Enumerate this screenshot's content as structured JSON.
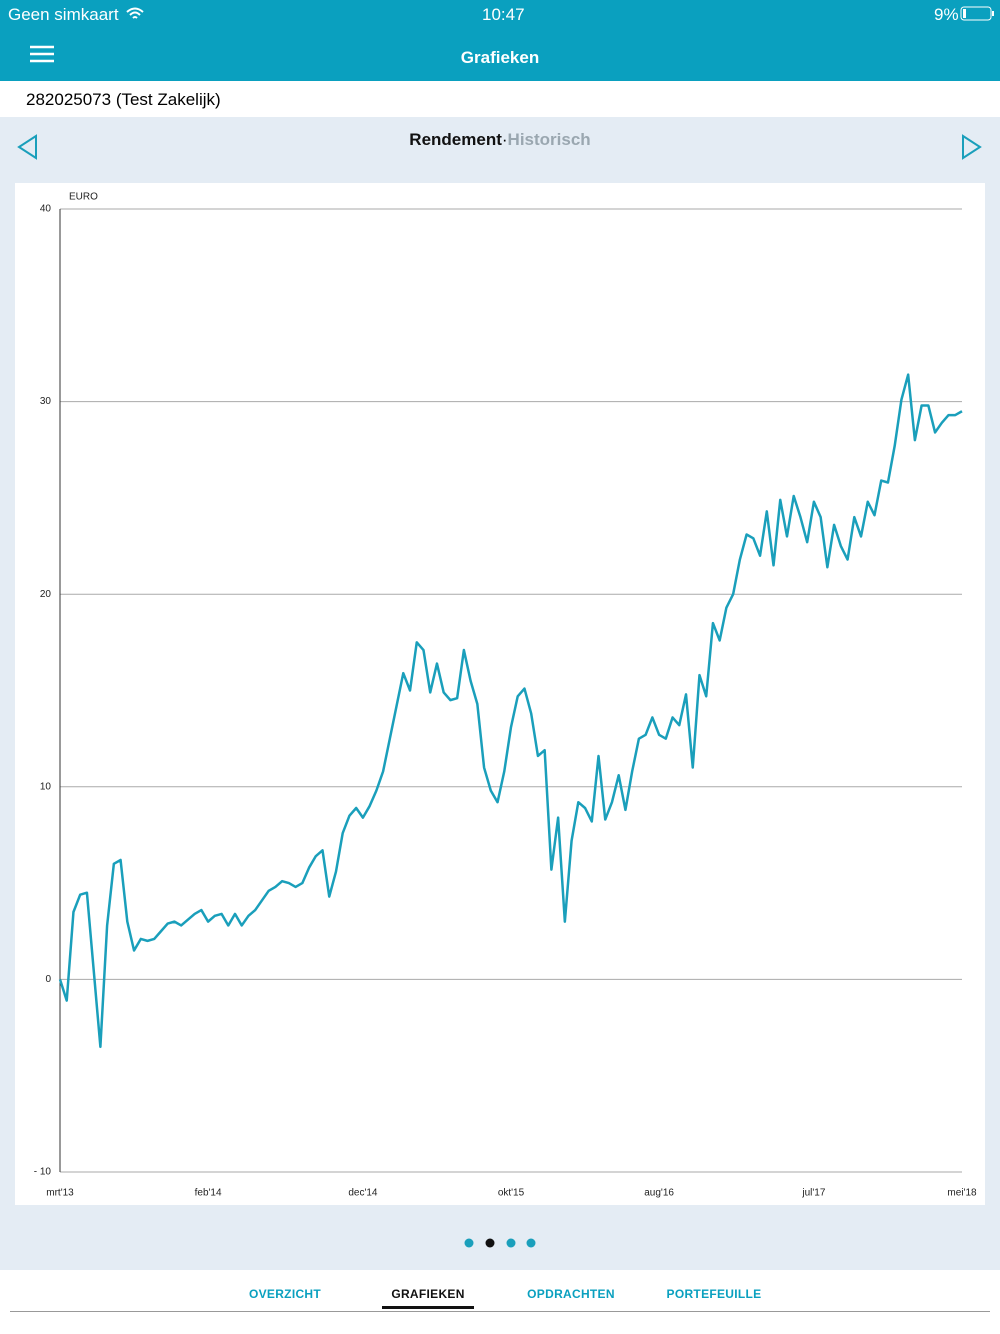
{
  "status_bar": {
    "carrier": "Geen simkaart",
    "time": "10:47",
    "battery": "9%"
  },
  "header": {
    "title": "Grafieken"
  },
  "account": "282025073 (Test Zakelijk)",
  "chart_nav": {
    "primary": "Rendement",
    "separator": "·",
    "secondary": "Historisch"
  },
  "chart_data": {
    "type": "line",
    "y_label": "EURO",
    "color": "#1a9fbb",
    "grid": true,
    "ylim": [
      -10,
      40
    ],
    "yticks": [
      {
        "value": -10,
        "label": "- 10"
      },
      0,
      10,
      20,
      30,
      40
    ],
    "categories": [
      "mrt'13",
      null,
      null,
      null,
      null,
      null,
      null,
      null,
      null,
      null,
      null,
      null,
      null,
      null,
      null,
      null,
      null,
      null,
      null,
      null,
      null,
      null,
      "feb'14",
      null,
      null,
      null,
      null,
      null,
      null,
      null,
      null,
      null,
      null,
      null,
      null,
      null,
      null,
      null,
      null,
      null,
      null,
      null,
      null,
      null,
      null,
      "dec'14",
      null,
      null,
      null,
      null,
      null,
      null,
      null,
      null,
      null,
      null,
      null,
      null,
      null,
      null,
      null,
      null,
      null,
      null,
      null,
      null,
      null,
      "okt'15",
      null,
      null,
      null,
      null,
      null,
      null,
      null,
      null,
      null,
      null,
      null,
      null,
      null,
      null,
      null,
      null,
      null,
      null,
      null,
      null,
      null,
      "aug'16",
      null,
      null,
      null,
      null,
      null,
      null,
      null,
      null,
      null,
      null,
      null,
      null,
      null,
      null,
      null,
      null,
      null,
      null,
      null,
      null,
      null,
      null,
      "jul'17",
      null,
      null,
      null,
      null,
      null,
      null,
      null,
      null,
      null,
      null,
      null,
      null,
      null,
      null,
      null,
      null,
      null,
      null,
      null,
      null,
      null,
      "mei'18"
    ],
    "values": [
      0,
      -1.1,
      3.5,
      4.4,
      4.5,
      0.5,
      -3.5,
      2.8,
      6.0,
      6.2,
      3.0,
      1.5,
      2.1,
      2.0,
      2.1,
      2.5,
      2.9,
      3.0,
      2.8,
      3.1,
      3.4,
      3.6,
      3.0,
      3.3,
      3.4,
      2.8,
      3.4,
      2.8,
      3.3,
      3.6,
      4.1,
      4.6,
      4.8,
      5.1,
      5.0,
      4.8,
      5.0,
      5.8,
      6.4,
      6.7,
      4.3,
      5.6,
      7.6,
      8.5,
      8.9,
      8.4,
      9.0,
      9.8,
      10.8,
      12.5,
      14.2,
      15.9,
      15.0,
      17.5,
      17.1,
      14.9,
      16.4,
      14.9,
      14.5,
      14.6,
      17.1,
      15.5,
      14.3,
      11.0,
      9.8,
      9.2,
      10.8,
      13.1,
      14.7,
      15.1,
      13.8,
      11.6,
      11.9,
      5.7,
      8.4,
      3.0,
      7.2,
      9.2,
      8.9,
      8.2,
      11.6,
      8.3,
      9.2,
      10.6,
      8.8,
      10.8,
      12.5,
      12.7,
      13.6,
      12.7,
      12.5,
      13.6,
      13.2,
      14.8,
      11.0,
      15.8,
      14.7,
      18.5,
      17.6,
      19.3,
      20.0,
      21.8,
      23.1,
      22.9,
      22.0,
      24.3,
      21.5,
      24.9,
      23.0,
      25.1,
      24.0,
      22.7,
      24.8,
      24.0,
      21.4,
      23.6,
      22.5,
      21.8,
      24.0,
      23.0,
      24.8,
      24.1,
      25.9,
      25.8,
      27.7,
      30.1,
      31.4,
      28.0,
      29.8,
      29.8,
      28.4,
      28.9,
      29.3,
      29.3,
      29.5
    ]
  },
  "tabs": [
    "OVERZICHT",
    "GRAFIEKEN",
    "OPDRACHTEN",
    "PORTEFEUILLE"
  ]
}
